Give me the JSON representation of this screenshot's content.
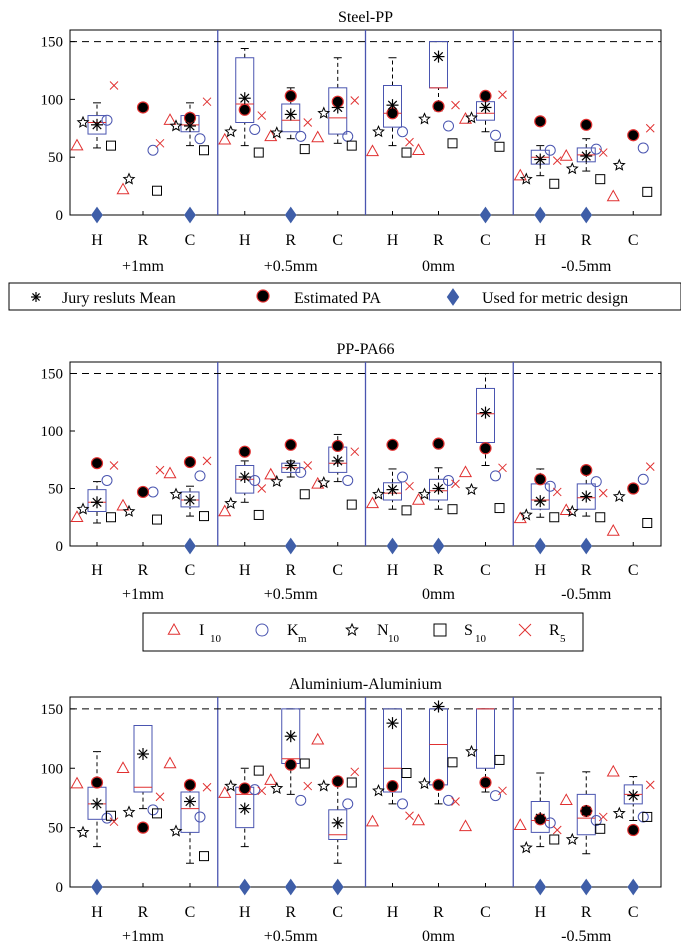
{
  "colors": {
    "marker_red": "#e03030",
    "box_blue": "#4a55b0",
    "diamond_blue": "#3f5ea8",
    "median_red": "#e03030",
    "dashed_line": "#000000"
  },
  "shared": {
    "categories": [
      "H",
      "R",
      "C"
    ],
    "offsets": [
      "+1mm",
      "+0.5mm",
      "0mm",
      "-0.5mm"
    ],
    "y_ticks": [
      "0",
      "50",
      "100",
      "150"
    ],
    "ylim": [
      0,
      160
    ],
    "reference_line": 150
  },
  "legend_top": {
    "items": [
      {
        "key": "jury",
        "label": "Jury resluts Mean"
      },
      {
        "key": "est",
        "label": "Estimated PA"
      },
      {
        "key": "used",
        "label": "Used for metric design"
      }
    ]
  },
  "legend_mid": {
    "items": [
      {
        "key": "I",
        "label": "I",
        "sub": "10"
      },
      {
        "key": "K",
        "label": "K",
        "sub": "m"
      },
      {
        "key": "N",
        "label": "N",
        "sub": "10"
      },
      {
        "key": "S",
        "label": "S",
        "sub": "10"
      },
      {
        "key": "R",
        "label": "R",
        "sub": "5"
      }
    ]
  },
  "chart_data": [
    {
      "type": "box",
      "title": "Steel-PP",
      "groups": [
        {
          "box": [
            70,
            86
          ],
          "median": 80,
          "whisk": [
            58,
            97
          ],
          "jury": 78,
          "est": null,
          "I": 60,
          "K": 82,
          "N": 80,
          "S": 60,
          "R": 112,
          "used": true
        },
        {
          "box": null,
          "median": null,
          "whisk": null,
          "jury": null,
          "est": 93,
          "I": 22,
          "K": 56,
          "N": 31,
          "S": 21,
          "R": 62,
          "used": false
        },
        {
          "box": [
            72,
            86
          ],
          "median": 78,
          "whisk": [
            60,
            97
          ],
          "jury": 77,
          "est": 84,
          "I": 82,
          "K": 66,
          "N": 77,
          "S": 56,
          "R": 98,
          "used": true
        },
        {
          "box": [
            80,
            136
          ],
          "median": 96,
          "whisk": [
            60,
            144
          ],
          "jury": 101,
          "est": 91,
          "I": 65,
          "K": 74,
          "N": 72,
          "S": 54,
          "R": 86,
          "used": false
        },
        {
          "box": [
            72,
            96
          ],
          "median": 82,
          "whisk": [
            66,
            110
          ],
          "jury": 87,
          "est": 103,
          "I": 68,
          "K": 68,
          "N": 71,
          "S": 57,
          "R": 80,
          "used": true
        },
        {
          "box": [
            70,
            110
          ],
          "median": 84,
          "whisk": [
            62,
            136
          ],
          "jury": 93,
          "est": 98,
          "I": 67,
          "K": 68,
          "N": 88,
          "S": 60,
          "R": 99,
          "used": false
        },
        {
          "box": [
            76,
            112
          ],
          "median": 88,
          "whisk": [
            60,
            136
          ],
          "jury": 95,
          "est": 88,
          "I": 55,
          "K": 72,
          "N": 72,
          "S": 54,
          "R": 63,
          "used": false
        },
        {
          "box": [
            110,
            150
          ],
          "median": 110,
          "whisk": [
            90,
            150
          ],
          "jury": 137,
          "est": 94,
          "I": 56,
          "K": 77,
          "N": 83,
          "S": 62,
          "R": 95,
          "used": false
        },
        {
          "box": [
            82,
            98
          ],
          "median": 88,
          "whisk": [
            72,
            104
          ],
          "jury": 93,
          "est": 103,
          "I": 83,
          "K": 69,
          "N": 84,
          "S": 59,
          "R": 104,
          "used": true
        },
        {
          "box": [
            44,
            56
          ],
          "median": 50,
          "whisk": [
            34,
            60
          ],
          "jury": 48,
          "est": 81,
          "I": 34,
          "K": 56,
          "N": 31,
          "S": 27,
          "R": 47,
          "used": true
        },
        {
          "box": [
            46,
            58
          ],
          "median": 52,
          "whisk": [
            38,
            66
          ],
          "jury": 51,
          "est": 78,
          "I": 51,
          "K": 57,
          "N": 40,
          "S": 31,
          "R": 54,
          "used": true
        },
        {
          "box": null,
          "median": null,
          "whisk": null,
          "jury": null,
          "est": 69,
          "I": 16,
          "K": 58,
          "N": 43,
          "S": 20,
          "R": 75,
          "used": false
        }
      ]
    },
    {
      "type": "box",
      "title": "PP-PA66",
      "groups": [
        {
          "box": [
            30,
            49
          ],
          "median": 38,
          "whisk": [
            20,
            56
          ],
          "jury": 38,
          "est": 72,
          "I": 25,
          "K": 57,
          "N": 32,
          "S": 25,
          "R": 70,
          "used": false
        },
        {
          "box": null,
          "median": null,
          "whisk": null,
          "jury": null,
          "est": 47,
          "I": 35,
          "K": 47,
          "N": 30,
          "S": 23,
          "R": 66,
          "used": false
        },
        {
          "box": [
            34,
            47
          ],
          "median": 40,
          "whisk": [
            26,
            52
          ],
          "jury": 40,
          "est": 73,
          "I": 63,
          "K": 61,
          "N": 45,
          "S": 26,
          "R": 74,
          "used": true
        },
        {
          "box": [
            46,
            70
          ],
          "median": 58,
          "whisk": [
            38,
            74
          ],
          "jury": 60,
          "est": 82,
          "I": 30,
          "K": 57,
          "N": 37,
          "S": 27,
          "R": 50,
          "used": false
        },
        {
          "box": [
            64,
            72
          ],
          "median": 68,
          "whisk": [
            60,
            74
          ],
          "jury": 70,
          "est": 88,
          "I": 62,
          "K": 64,
          "N": 56,
          "S": 45,
          "R": 70,
          "used": true
        },
        {
          "box": [
            64,
            86
          ],
          "median": 72,
          "whisk": [
            56,
            97
          ],
          "jury": 74,
          "est": 87,
          "I": 54,
          "K": 57,
          "N": 55,
          "S": 36,
          "R": 82,
          "used": false
        },
        {
          "box": [
            40,
            55
          ],
          "median": 46,
          "whisk": [
            32,
            67
          ],
          "jury": 49,
          "est": 88,
          "I": 37,
          "K": 60,
          "N": 45,
          "S": 31,
          "R": 52,
          "used": true
        },
        {
          "box": [
            40,
            58
          ],
          "median": 48,
          "whisk": [
            32,
            68
          ],
          "jury": 50,
          "est": 89,
          "I": 40,
          "K": 57,
          "N": 45,
          "S": 32,
          "R": 54,
          "used": true
        },
        {
          "box": [
            90,
            137
          ],
          "median": 115,
          "whisk": [
            70,
            150
          ],
          "jury": 116,
          "est": 85,
          "I": 64,
          "K": 61,
          "N": 49,
          "S": 33,
          "R": 68,
          "used": false
        },
        {
          "box": [
            32,
            54
          ],
          "median": 40,
          "whisk": [
            25,
            67
          ],
          "jury": 39,
          "est": 58,
          "I": 24,
          "K": 52,
          "N": 27,
          "S": 25,
          "R": 47,
          "used": true
        },
        {
          "box": [
            32,
            54
          ],
          "median": 42,
          "whisk": [
            26,
            68
          ],
          "jury": 43,
          "est": 66,
          "I": 31,
          "K": 56,
          "N": 30,
          "S": 25,
          "R": 46,
          "used": true
        },
        {
          "box": null,
          "median": null,
          "whisk": null,
          "jury": null,
          "est": 50,
          "I": 13,
          "K": 58,
          "N": 43,
          "S": 20,
          "R": 69,
          "used": false
        }
      ]
    },
    {
      "type": "box",
      "title": "Aluminium-Aluminium",
      "groups": [
        {
          "box": [
            57,
            84
          ],
          "median": 70,
          "whisk": [
            34,
            114
          ],
          "jury": 70,
          "est": 88,
          "I": 87,
          "K": 58,
          "N": 46,
          "S": 60,
          "R": 55,
          "used": true
        },
        {
          "box": [
            80,
            136
          ],
          "median": 84,
          "whisk": [
            66,
            136
          ],
          "jury": 112,
          "est": 50,
          "I": 100,
          "K": 65,
          "N": 63,
          "S": 62,
          "R": 76,
          "used": false
        },
        {
          "box": [
            46,
            80
          ],
          "median": 66,
          "whisk": [
            20,
            88
          ],
          "jury": 72,
          "est": 86,
          "I": 104,
          "K": 59,
          "N": 47,
          "S": 26,
          "R": 84,
          "used": false
        },
        {
          "box": [
            50,
            84
          ],
          "median": 78,
          "whisk": [
            34,
            100
          ],
          "jury": 66,
          "est": 83,
          "I": 79,
          "K": 82,
          "N": 85,
          "S": 98,
          "R": 81,
          "used": true
        },
        {
          "box": [
            104,
            150
          ],
          "median": 108,
          "whisk": [
            78,
            150
          ],
          "jury": 127,
          "est": 103,
          "I": 90,
          "K": 73,
          "N": 83,
          "S": 104,
          "R": 85,
          "used": true
        },
        {
          "box": [
            40,
            65
          ],
          "median": 44,
          "whisk": [
            20,
            86
          ],
          "jury": 54,
          "est": 89,
          "I": 124,
          "K": 70,
          "N": 85,
          "S": 88,
          "R": 97,
          "used": true
        },
        {
          "box": [
            80,
            150
          ],
          "median": 100,
          "whisk": [
            70,
            150
          ],
          "jury": 138,
          "est": 85,
          "I": 55,
          "K": 70,
          "N": 81,
          "S": 96,
          "R": 60,
          "used": false
        },
        {
          "box": [
            86,
            150
          ],
          "median": 120,
          "whisk": [
            70,
            150
          ],
          "jury": 152,
          "est": 86,
          "I": 56,
          "K": 73,
          "N": 87,
          "S": 105,
          "R": 72,
          "used": false
        },
        {
          "box": [
            100,
            150
          ],
          "median": 150,
          "whisk": [
            80,
            150
          ],
          "jury": null,
          "est": 88,
          "I": 51,
          "K": 77,
          "N": 114,
          "S": 107,
          "R": 81,
          "used": false
        },
        {
          "box": [
            46,
            72
          ],
          "median": 56,
          "whisk": [
            34,
            96
          ],
          "jury": 58,
          "est": 57,
          "I": 52,
          "K": 54,
          "N": 33,
          "S": 40,
          "R": 48,
          "used": true
        },
        {
          "box": [
            44,
            78
          ],
          "median": 58,
          "whisk": [
            28,
            97
          ],
          "jury": 64,
          "est": 64,
          "I": 73,
          "K": 56,
          "N": 40,
          "S": 49,
          "R": 59,
          "used": true
        },
        {
          "box": [
            70,
            86
          ],
          "median": 78,
          "whisk": [
            56,
            93
          ],
          "jury": 77,
          "est": 48,
          "I": 97,
          "K": 59,
          "N": 62,
          "S": 59,
          "R": 86,
          "used": true
        }
      ]
    }
  ]
}
